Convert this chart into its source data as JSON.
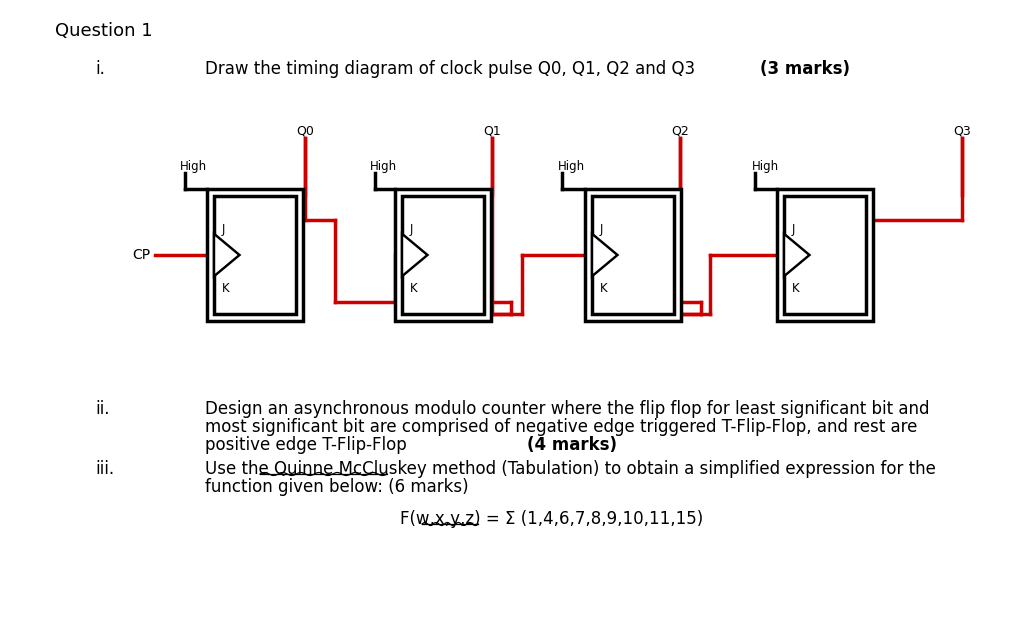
{
  "bg_color": "#ffffff",
  "title_text": "Question 1",
  "part_i_label": "i.",
  "part_i_text": "Draw the timing diagram of clock pulse Q0, Q1, Q2 and Q3 ",
  "part_i_bold": "(3 marks)",
  "part_ii_label": "ii.",
  "part_ii_line1": "Design an asynchronous modulo counter where the flip flop for least significant bit and",
  "part_ii_line2": "most significant bit are comprised of negative edge triggered T-Flip-Flop, and rest are",
  "part_ii_line3": "positive edge T-Flip-Flop ",
  "part_ii_bold": "(4 marks)",
  "part_iii_label": "iii.",
  "part_iii_line1": "Use the Quinne McCluskey method (Tabulation) to obtain a simplified expression for the",
  "part_iii_line2": "function given below: (6 marks)",
  "func_line": "F(w,x,y,z) = Σ (1,4,6,7,8,9,10,11,15)",
  "wire_color": "#cc0000",
  "q_labels": [
    "Q0",
    "Q1",
    "Q2",
    "Q3"
  ]
}
